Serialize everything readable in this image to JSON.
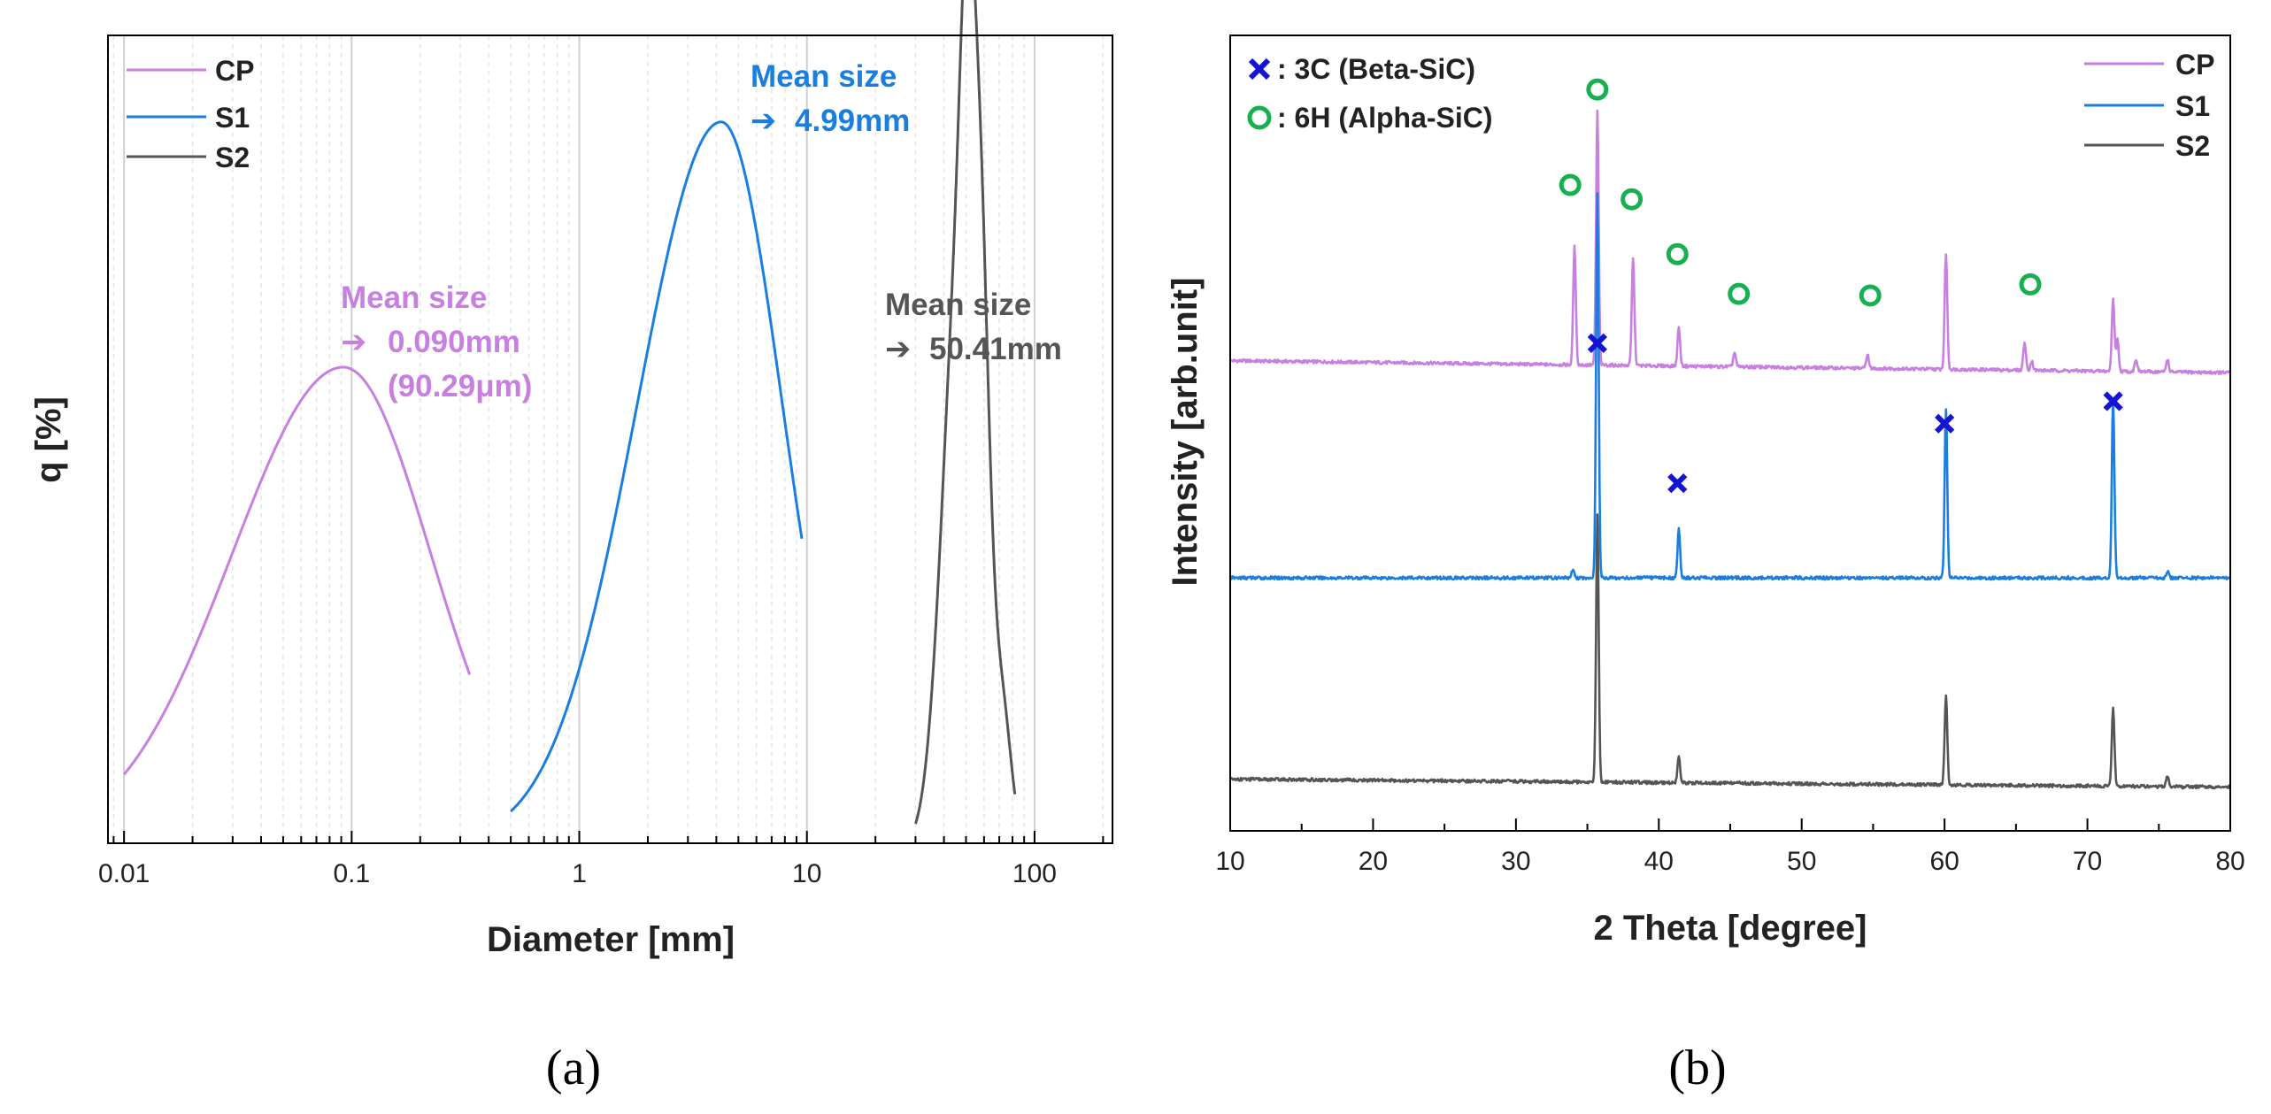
{
  "chart_data": [
    {
      "panel_label": "(a)",
      "type": "line",
      "x_scale": "log",
      "xlabel": "Diameter [mm]",
      "ylabel": "q [%]",
      "xlim": [
        0.0085,
        220
      ],
      "ylim": [
        0,
        1.12
      ],
      "y_ticks_shown": false,
      "grid": "vertical minor gridlines",
      "x_ticks": [
        {
          "value": 0.01,
          "label": "0.01"
        },
        {
          "value": 0.1,
          "label": "0.1"
        },
        {
          "value": 1,
          "label": "1"
        },
        {
          "value": 10,
          "label": "10"
        },
        {
          "value": 100,
          "label": "100"
        }
      ],
      "legend": {
        "position": "top-left",
        "entries": [
          {
            "label": "CP",
            "color": "#c77fe0"
          },
          {
            "label": "S1",
            "color": "#1a7ee0"
          },
          {
            "label": "S2",
            "color": "#555555"
          }
        ]
      },
      "series": [
        {
          "name": "CP",
          "color": "#c77fe0",
          "kind": "lognormal",
          "peak_x": 0.092,
          "peak_y": 0.66,
          "sigma_left": 0.49,
          "sigma_right": 0.385,
          "x_min": 0.01,
          "x_max": 0.33
        },
        {
          "name": "S1",
          "color": "#1a7ee0",
          "kind": "lognormal",
          "peak_x": 4.2,
          "peak_y": 1.0,
          "sigma_left": 0.37,
          "sigma_right": 0.27,
          "x_min": 0.5,
          "x_max": 9.5
        },
        {
          "name": "S2",
          "color": "#555555",
          "kind": "peaks",
          "x_min": 30,
          "x_max": 82,
          "peaks": [
            {
              "x": 46,
              "y": 0.54,
              "w": 0.055
            },
            {
              "x": 50.5,
              "y": 0.33,
              "w": 0.03
            },
            {
              "x": 55,
              "y": 0.58,
              "w": 0.05
            },
            {
              "x": 59,
              "y": 0.31,
              "w": 0.035
            },
            {
              "x": 72,
              "y": 0.18,
              "w": 0.04
            },
            {
              "x": 40,
              "y": 0.22,
              "w": 0.06
            }
          ]
        }
      ],
      "annotations": [
        {
          "series": "CP",
          "line1": "Mean size",
          "arrow": "➔",
          "line2": "0.090mm",
          "line3": "(90.29μm)",
          "color": "#c77fe0"
        },
        {
          "series": "S1",
          "line1": "Mean size",
          "arrow": "➔",
          "line2": "4.99mm",
          "color": "#1a7ee0"
        },
        {
          "series": "S2",
          "line1": "Mean size",
          "arrow": "➔",
          "line2": "50.41mm",
          "color": "#555555"
        }
      ]
    },
    {
      "panel_label": "(b)",
      "type": "line",
      "x_scale": "linear",
      "xlabel": "2 Theta [degree]",
      "ylabel": "Intensity [arb.unit]",
      "xlim": [
        10,
        80
      ],
      "ylim": [
        0,
        1
      ],
      "y_ticks_shown": false,
      "x_ticks": [
        {
          "value": 10,
          "label": "10"
        },
        {
          "value": 20,
          "label": "20"
        },
        {
          "value": 30,
          "label": "30"
        },
        {
          "value": 40,
          "label": "40"
        },
        {
          "value": 50,
          "label": "50"
        },
        {
          "value": 60,
          "label": "60"
        },
        {
          "value": 70,
          "label": "70"
        },
        {
          "value": 80,
          "label": "80"
        }
      ],
      "legend": {
        "position": "top-right",
        "entries": [
          {
            "label": "CP",
            "color": "#c77fe0"
          },
          {
            "label": "S1",
            "color": "#1a7ee0"
          },
          {
            "label": "S2",
            "color": "#555555"
          }
        ]
      },
      "marker_legend": [
        {
          "symbol": "cross",
          "label": ": 3C (Beta-SiC)",
          "color": "#1414d2"
        },
        {
          "symbol": "circle",
          "label": ": 6H (Alpha-SiC)",
          "color": "#16b050"
        }
      ],
      "series": [
        {
          "name": "CP",
          "color": "#c77fe0",
          "baseline_start": 0.591,
          "baseline_end": 0.576,
          "peaks": [
            {
              "x": 34.1,
              "h": 0.148
            },
            {
              "x": 35.7,
              "h": 0.319
            },
            {
              "x": 38.2,
              "h": 0.136
            },
            {
              "x": 41.4,
              "h": 0.049
            },
            {
              "x": 45.3,
              "h": 0.018
            },
            {
              "x": 54.6,
              "h": 0.018
            },
            {
              "x": 60.1,
              "h": 0.146
            },
            {
              "x": 65.6,
              "h": 0.035
            },
            {
              "x": 66.1,
              "h": 0.012
            },
            {
              "x": 71.8,
              "h": 0.092
            },
            {
              "x": 72.1,
              "h": 0.04
            },
            {
              "x": 73.4,
              "h": 0.016
            },
            {
              "x": 75.6,
              "h": 0.016
            }
          ]
        },
        {
          "name": "S1",
          "color": "#1a7ee0",
          "baseline_start": 0.318,
          "baseline_end": 0.318,
          "peaks": [
            {
              "x": 34.0,
              "h": 0.012
            },
            {
              "x": 35.7,
              "h": 0.482
            },
            {
              "x": 41.4,
              "h": 0.061
            },
            {
              "x": 60.1,
              "h": 0.212
            },
            {
              "x": 71.8,
              "h": 0.226
            },
            {
              "x": 75.6,
              "h": 0.008
            }
          ]
        },
        {
          "name": "S2",
          "color": "#555555",
          "baseline_start": 0.065,
          "baseline_end": 0.055,
          "peaks": [
            {
              "x": 35.7,
              "h": 0.335
            },
            {
              "x": 41.4,
              "h": 0.034
            },
            {
              "x": 60.1,
              "h": 0.112
            },
            {
              "x": 71.8,
              "h": 0.099
            },
            {
              "x": 75.6,
              "h": 0.014
            }
          ]
        }
      ],
      "markers": [
        {
          "symbol": "circle",
          "x": 33.8,
          "y": 0.812
        },
        {
          "symbol": "circle",
          "x": 35.7,
          "y": 0.932
        },
        {
          "symbol": "circle",
          "x": 38.1,
          "y": 0.794
        },
        {
          "symbol": "circle",
          "x": 41.3,
          "y": 0.725
        },
        {
          "symbol": "circle",
          "x": 45.6,
          "y": 0.675
        },
        {
          "symbol": "circle",
          "x": 54.8,
          "y": 0.673
        },
        {
          "symbol": "circle",
          "x": 66.0,
          "y": 0.687
        },
        {
          "symbol": "cross",
          "x": 35.7,
          "y": 0.613
        },
        {
          "symbol": "cross",
          "x": 41.3,
          "y": 0.437
        },
        {
          "symbol": "cross",
          "x": 60.0,
          "y": 0.512
        },
        {
          "symbol": "cross",
          "x": 71.8,
          "y": 0.54
        }
      ]
    }
  ]
}
